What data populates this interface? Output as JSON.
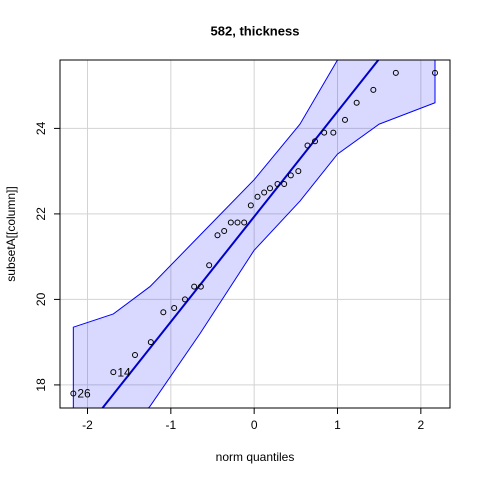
{
  "chart_data": {
    "type": "qqplot",
    "title": "582, thickness",
    "xlabel": "norm quantiles",
    "ylabel": "subsetA[[column]]",
    "x": [
      -2.17,
      -1.69,
      -1.43,
      -1.24,
      -1.09,
      -0.96,
      -0.83,
      -0.72,
      -0.64,
      -0.54,
      -0.44,
      -0.36,
      -0.28,
      -0.2,
      -0.12,
      -0.04,
      0.04,
      0.12,
      0.19,
      0.28,
      0.36,
      0.44,
      0.53,
      0.64,
      0.73,
      0.84,
      0.95,
      1.09,
      1.23,
      1.43,
      1.7,
      2.17
    ],
    "values": [
      17.8,
      18.3,
      18.7,
      19.0,
      19.7,
      19.8,
      20.0,
      20.3,
      20.3,
      20.8,
      21.5,
      21.6,
      21.8,
      21.8,
      21.8,
      22.2,
      22.4,
      22.5,
      22.6,
      22.7,
      22.7,
      22.9,
      23.0,
      23.6,
      23.7,
      23.9,
      23.9,
      24.2,
      24.6,
      24.9,
      25.3,
      25.3
    ],
    "point_labels": [
      "26",
      "14",
      null,
      null,
      null,
      null,
      null,
      null,
      null,
      null,
      null,
      null,
      null,
      null,
      null,
      null,
      null,
      null,
      null,
      null,
      null,
      null,
      null,
      null,
      null,
      null,
      null,
      null,
      null,
      null,
      null,
      null
    ],
    "point_color": "#000000",
    "line": {
      "x": [
        -1.82,
        1.49
      ],
      "values": [
        17.46,
        25.6
      ],
      "color": "#0000cd"
    },
    "envelope": {
      "x": [
        -2.17,
        -1.69,
        -1.25,
        -0.65,
        0,
        0.55,
        1.0,
        1.5,
        2.17
      ],
      "upper": [
        19.35,
        19.66,
        20.3,
        21.5,
        22.8,
        24.1,
        25.6,
        26.8,
        28.0
      ],
      "lower": [
        16.0,
        16.6,
        17.5,
        19.2,
        21.15,
        22.3,
        23.4,
        24.1,
        24.6
      ],
      "color": "#0000ff"
    },
    "xlim": [
      -2.33,
      2.35
    ],
    "ylim": [
      17.46,
      25.6
    ],
    "xticks": [
      -2,
      -1,
      0,
      1,
      2
    ],
    "yticks": [
      18,
      20,
      22,
      24
    ],
    "grid": true
  }
}
